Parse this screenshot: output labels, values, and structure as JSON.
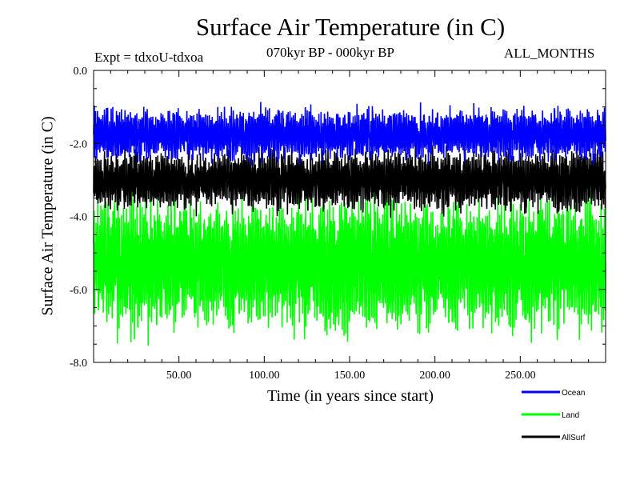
{
  "chart_data": {
    "type": "line",
    "title": "Surface Air Temperature (in C)",
    "subtitle_left": "Expt = tdxoU-tdxoa",
    "subtitle_center": "070kyr BP - 000kyr BP",
    "subtitle_right": "ALL_MONTHS",
    "xlabel": "Time (in years since start)",
    "ylabel": "Surface Air Temperature (in C)",
    "xlim": [
      0,
      300
    ],
    "ylim": [
      -8.0,
      0.0
    ],
    "xticks": [
      50,
      100,
      150,
      200,
      250
    ],
    "xtick_labels": [
      "50.00",
      "100.00",
      "150.00",
      "200.00",
      "250.00"
    ],
    "yticks": [
      0,
      -2,
      -4,
      -6,
      -8
    ],
    "ytick_labels": [
      "0.0",
      "-2.0",
      "-4.0",
      "-6.0",
      "-8.0"
    ],
    "grid": false,
    "legend_position": "bottom-right, below the plot",
    "series": [
      {
        "name": "Ocean",
        "color": "#0000ff",
        "mean": -1.75,
        "typical_range": [
          -2.8,
          -0.9
        ]
      },
      {
        "name": "Land",
        "color": "#00ff00",
        "mean": -5.3,
        "typical_range": [
          -8.0,
          -3.2
        ]
      },
      {
        "name": "AllSurf",
        "color": "#000000",
        "mean": -3.0,
        "typical_range": [
          -4.1,
          -1.9
        ]
      }
    ],
    "samples_per_year": 12
  }
}
